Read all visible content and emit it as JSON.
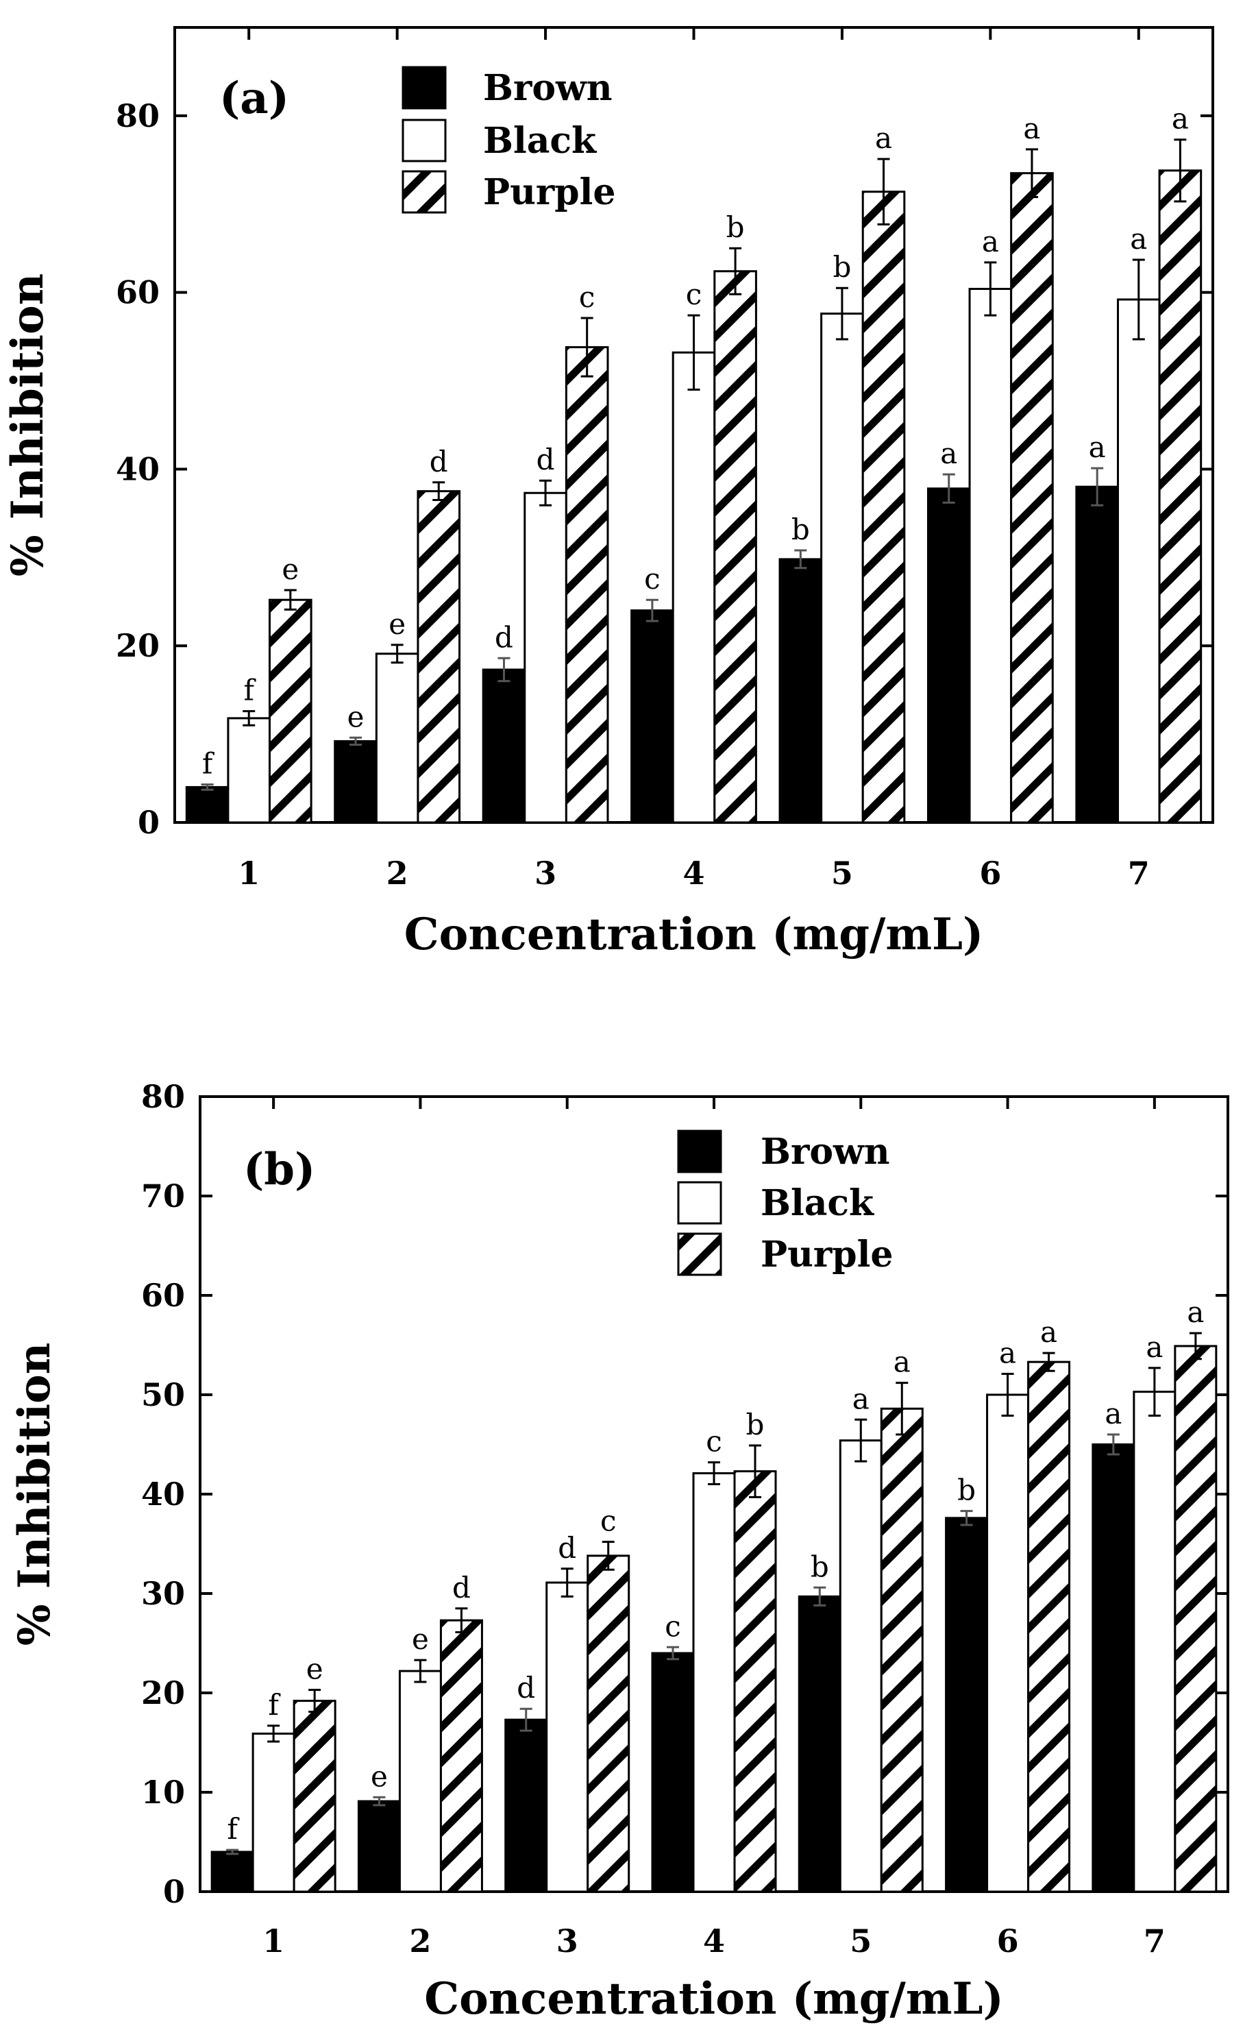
{
  "chart_data": [
    {
      "type": "bar",
      "panel_label": "(a)",
      "xlabel": "Concentration (mg/mL)",
      "ylabel": "% Inhibition",
      "categories": [
        "1",
        "2",
        "3",
        "4",
        "5",
        "6",
        "7"
      ],
      "ylim": [
        0,
        90
      ],
      "yticks": [
        0,
        20,
        40,
        60,
        80
      ],
      "legend": [
        "Brown",
        "Black",
        "Purple"
      ],
      "series": [
        {
          "name": "Brown",
          "pattern": "solid",
          "values": [
            4.0,
            9.2,
            17.3,
            24.0,
            29.8,
            37.8,
            38.0
          ],
          "errors": [
            0.3,
            0.4,
            1.3,
            1.2,
            1.0,
            1.6,
            2.1
          ],
          "labels": [
            "f",
            "e",
            "d",
            "c",
            "b",
            "a",
            "a"
          ]
        },
        {
          "name": "Black",
          "pattern": "open",
          "values": [
            11.8,
            19.1,
            37.3,
            53.2,
            57.6,
            60.4,
            59.2
          ],
          "errors": [
            0.8,
            1.0,
            1.4,
            4.2,
            2.9,
            3.0,
            4.5
          ],
          "labels": [
            "f",
            "e",
            "d",
            "c",
            "b",
            "a",
            "a"
          ]
        },
        {
          "name": "Purple",
          "pattern": "hatched",
          "values": [
            25.2,
            37.5,
            53.8,
            62.4,
            71.4,
            73.5,
            73.8
          ],
          "errors": [
            1.1,
            1.0,
            3.3,
            2.6,
            3.7,
            2.7,
            3.5
          ],
          "labels": [
            "e",
            "d",
            "c",
            "b",
            "a",
            "a",
            "a"
          ]
        }
      ]
    },
    {
      "type": "bar",
      "panel_label": "(b)",
      "xlabel": "Concentration (mg/mL)",
      "ylabel": "% Inhibition",
      "categories": [
        "1",
        "2",
        "3",
        "4",
        "5",
        "6",
        "7"
      ],
      "ylim": [
        0,
        80
      ],
      "yticks": [
        0,
        10,
        20,
        30,
        40,
        50,
        60,
        70,
        80
      ],
      "legend": [
        "Brown",
        "Black",
        "Purple"
      ],
      "series": [
        {
          "name": "Brown",
          "pattern": "solid",
          "values": [
            4.0,
            9.1,
            17.3,
            24.0,
            29.7,
            37.6,
            45.0
          ],
          "errors": [
            0.2,
            0.4,
            1.1,
            0.6,
            0.9,
            0.7,
            1.0
          ],
          "labels": [
            "f",
            "e",
            "d",
            "c",
            "b",
            "b",
            "a"
          ]
        },
        {
          "name": "Black",
          "pattern": "open",
          "values": [
            15.9,
            22.2,
            31.1,
            42.1,
            45.4,
            50.0,
            50.3
          ],
          "errors": [
            0.8,
            1.1,
            1.4,
            1.1,
            2.1,
            2.1,
            2.4
          ],
          "labels": [
            "f",
            "e",
            "d",
            "c",
            "a",
            "a",
            "a"
          ]
        },
        {
          "name": "Purple",
          "pattern": "hatched",
          "values": [
            19.2,
            27.3,
            33.8,
            42.3,
            48.6,
            53.3,
            54.9
          ],
          "errors": [
            1.1,
            1.2,
            1.4,
            2.6,
            2.6,
            0.9,
            1.3
          ],
          "labels": [
            "e",
            "d",
            "c",
            "b",
            "a",
            "a",
            "a"
          ]
        }
      ]
    }
  ]
}
